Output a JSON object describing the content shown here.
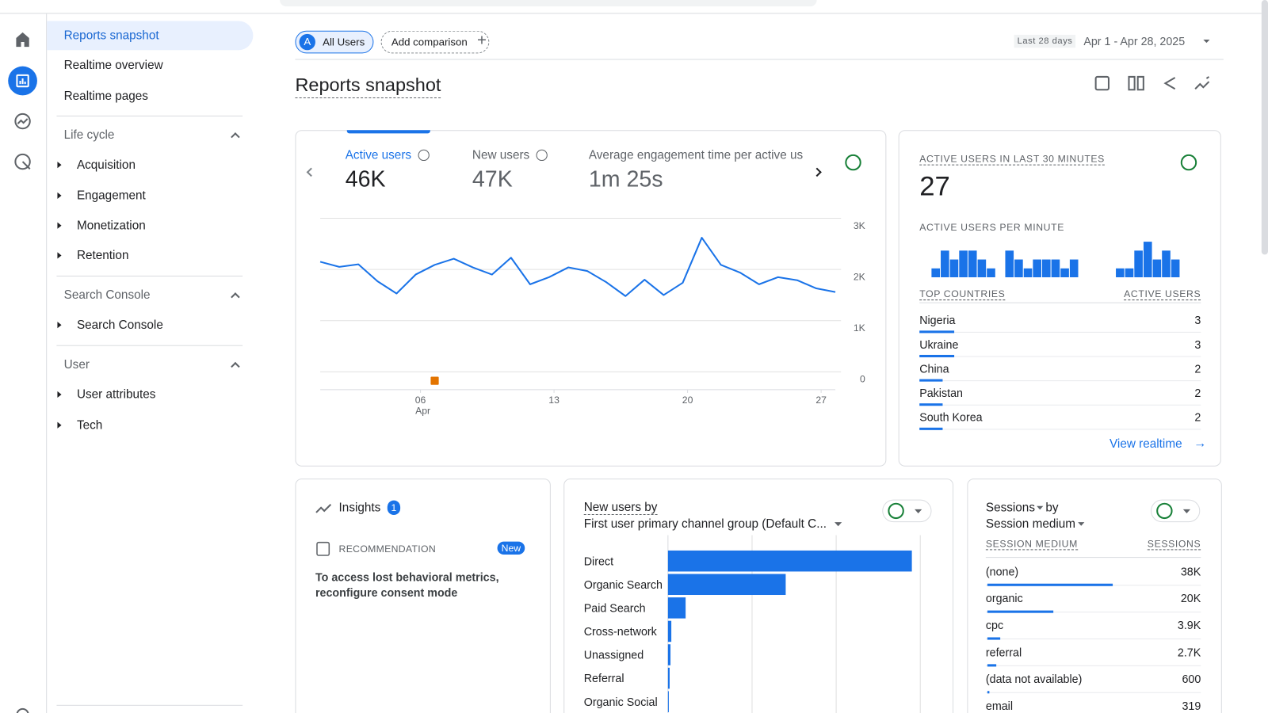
{
  "sidebar": {
    "items": [
      "Reports snapshot",
      "Realtime overview",
      "Realtime pages"
    ],
    "sections": [
      {
        "title": "Life cycle",
        "items": [
          "Acquisition",
          "Engagement",
          "Monetization",
          "Retention"
        ]
      },
      {
        "title": "Search Console",
        "items": [
          "Search Console"
        ]
      },
      {
        "title": "User",
        "items": [
          "User attributes",
          "Tech"
        ]
      }
    ]
  },
  "header": {
    "segment_initial": "A",
    "segment": "All Users",
    "add_comparison": "Add comparison",
    "date_label": "Last 28 days",
    "date_range": "Apr 1 - Apr 28, 2025",
    "title": "Reports snapshot"
  },
  "overview": {
    "metrics": [
      {
        "label": "Active users",
        "value": "46K"
      },
      {
        "label": "New users",
        "value": "47K"
      },
      {
        "label": "Average engagement time per active us",
        "value": "1m 25s"
      }
    ],
    "chart": {
      "type": "line",
      "x": [
        1,
        2,
        3,
        4,
        5,
        6,
        7,
        8,
        9,
        10,
        11,
        12,
        13,
        14,
        15,
        16,
        17,
        18,
        19,
        20,
        21,
        22,
        23,
        24,
        25,
        26,
        27,
        28
      ],
      "values": [
        2150,
        2050,
        2100,
        1770,
        1530,
        1900,
        2090,
        2210,
        2040,
        1900,
        2230,
        1710,
        1850,
        2040,
        1970,
        1750,
        1480,
        1800,
        1500,
        1740,
        2620,
        2090,
        1940,
        1710,
        1850,
        1790,
        1630,
        1560
      ],
      "xlim": [
        1,
        28
      ],
      "ylim": [
        0,
        3000
      ],
      "yticks": [
        0,
        {
          "value": 1000,
          "label": "1K"
        },
        {
          "value": 2000,
          "label": "2K"
        },
        {
          "value": 3000,
          "label": "3K"
        }
      ],
      "xticks": [
        {
          "value": 6,
          "label": "06"
        },
        13,
        20,
        27
      ],
      "xtick_sublabel": "Apr",
      "color": "#1a73e8",
      "annotation_x": [
        7
      ],
      "annotation_color": "#e37400"
    }
  },
  "realtime": {
    "title": "ACTIVE USERS IN LAST 30 MINUTES",
    "value": 27,
    "per_minute_title": "ACTIVE USERS PER MINUTE",
    "per_minute": {
      "type": "bar",
      "values": [
        0,
        1,
        3,
        2,
        3,
        3,
        2,
        1,
        0,
        3,
        2,
        1,
        2,
        2,
        2,
        1,
        2,
        0,
        0,
        0,
        0,
        1,
        1,
        3,
        4,
        2,
        3,
        2,
        0,
        0
      ],
      "ylim": [
        0,
        4
      ],
      "color": "#1a73e8"
    },
    "columns": [
      "TOP COUNTRIES",
      "ACTIVE USERS"
    ],
    "rows": [
      {
        "name": "Nigeria",
        "value": 3
      },
      {
        "name": "Ukraine",
        "value": 3
      },
      {
        "name": "China",
        "value": 2
      },
      {
        "name": "Pakistan",
        "value": 2
      },
      {
        "name": "South Korea",
        "value": 2
      }
    ],
    "link": "View realtime"
  },
  "insights": {
    "title": "Insights",
    "count": 1,
    "tag": "RECOMMENDATION",
    "badge": "New",
    "text": "To access lost behavioral metrics, reconfigure consent mode"
  },
  "new_users": {
    "title": "New users by",
    "dimension": "First user primary channel group (Default C...",
    "chart": {
      "type": "bar",
      "orientation": "horizontal",
      "categories": [
        "Direct",
        "Organic Search",
        "Paid Search",
        "Cross-network",
        "Unassigned",
        "Referral",
        "Organic Social"
      ],
      "values": [
        29000,
        14000,
        2100,
        400,
        300,
        200,
        100
      ],
      "xlim": [
        0,
        30000
      ],
      "xgrid": [
        10000,
        20000,
        30000
      ],
      "color": "#1a73e8"
    }
  },
  "sessions": {
    "metric": "Sessions",
    "by": "by",
    "dimension": "Session medium",
    "columns": [
      "SESSION MEDIUM",
      "SESSIONS"
    ],
    "rows": [
      {
        "name": "(none)",
        "value": 38000,
        "value_label": "38K"
      },
      {
        "name": "organic",
        "value": 20000,
        "value_label": "20K"
      },
      {
        "name": "cpc",
        "value": 3900,
        "value_label": "3.9K"
      },
      {
        "name": "referral",
        "value": 2700,
        "value_label": "2.7K"
      },
      {
        "name": "(data not available)",
        "value": 600
      },
      {
        "name": "email",
        "value": 319
      }
    ]
  }
}
